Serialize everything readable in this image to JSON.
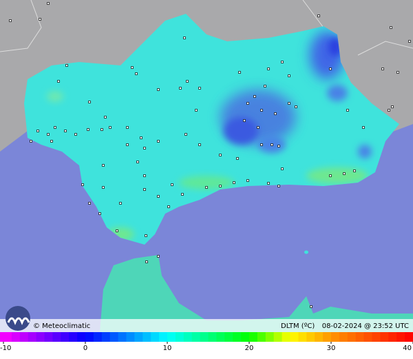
{
  "header": {
    "logo_text": "© Meteoclimatic",
    "variable": "DLTM (ºC)",
    "timestamp": "08-02-2024 @ 23:52 UTC"
  },
  "colorbar": {
    "range": [
      -10,
      40
    ],
    "ticks": [
      -10,
      0,
      10,
      20,
      30,
      40
    ]
  }
}
